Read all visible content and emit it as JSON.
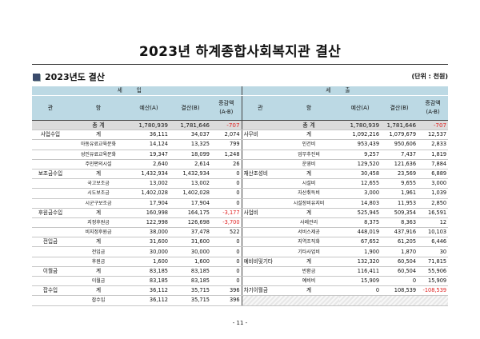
{
  "title": "2023년 하계종합사회복지관 결산",
  "subtitle": "2023년도 결산",
  "unit": "(단위 : 천원)",
  "header": {
    "income": "세입",
    "expense": "세출",
    "col_gwan": "관",
    "col_hang": "항",
    "col_budget": "예산(A)",
    "col_settle": "결산(B)",
    "col_diff": "증감액\n(A-B)"
  },
  "rows": [
    {
      "lg": "",
      "lh": "총 계",
      "la": "1,780,939",
      "lb": "1,781,646",
      "ld": "-707",
      "rg": "",
      "rh": "총 계",
      "ra": "1,780,939",
      "rb": "1,781,646",
      "rd": "-707"
    },
    {
      "lg": "사업수입",
      "lh": "계",
      "la": "36,111",
      "lb": "34,037",
      "ld": "2,074",
      "rg": "사무비",
      "rh": "계",
      "ra": "1,092,216",
      "rb": "1,079,679",
      "rd": "12,537"
    },
    {
      "lg": "",
      "lh": "아동유료교육문화",
      "la": "14,124",
      "lb": "13,325",
      "ld": "799",
      "rg": "",
      "rh": "인건비",
      "ra": "953,439",
      "rb": "950,606",
      "rd": "2,833"
    },
    {
      "lg": "",
      "lh": "성인유료교육문화",
      "la": "19,347",
      "lb": "18,099",
      "ld": "1,248",
      "rg": "",
      "rh": "업무추진비",
      "ra": "9,257",
      "rb": "7,437",
      "rd": "1,819"
    },
    {
      "lg": "",
      "lh": "주민편의시설",
      "la": "2,640",
      "lb": "2,614",
      "ld": "26",
      "rg": "",
      "rh": "운영비",
      "ra": "129,520",
      "rb": "121,636",
      "rd": "7,884"
    },
    {
      "lg": "보조금수입",
      "lh": "계",
      "la": "1,432,934",
      "lb": "1,432,934",
      "ld": "0",
      "rg": "재산조성비",
      "rh": "계",
      "ra": "30,458",
      "rb": "23,569",
      "rd": "6,889"
    },
    {
      "lg": "",
      "lh": "국고보조금",
      "la": "13,002",
      "lb": "13,002",
      "ld": "0",
      "rg": "",
      "rh": "시설비",
      "ra": "12,655",
      "rb": "9,655",
      "rd": "3,000"
    },
    {
      "lg": "",
      "lh": "시도보조금",
      "la": "1,402,028",
      "lb": "1,402,028",
      "ld": "0",
      "rg": "",
      "rh": "자산취득비",
      "ra": "3,000",
      "rb": "1,961",
      "rd": "1,039"
    },
    {
      "lg": "",
      "lh": "시군구보조금",
      "la": "17,904",
      "lb": "17,904",
      "ld": "0",
      "rg": "",
      "rh": "시설장비유지비",
      "ra": "14,803",
      "rb": "11,953",
      "rd": "2,850"
    },
    {
      "lg": "후원금수입",
      "lh": "계",
      "la": "160,998",
      "lb": "164,175",
      "ld": "-3,177",
      "rg": "사업비",
      "rh": "계",
      "ra": "525,945",
      "rb": "509,354",
      "rd": "16,591"
    },
    {
      "lg": "",
      "lh": "지정후원금",
      "la": "122,998",
      "lb": "126,698",
      "ld": "-3,700",
      "rg": "",
      "rh": "사례관리",
      "ra": "8,375",
      "rb": "8,363",
      "rd": "12"
    },
    {
      "lg": "",
      "lh": "비지정후원금",
      "la": "38,000",
      "lb": "37,478",
      "ld": "522",
      "rg": "",
      "rh": "서비스제공",
      "ra": "448,019",
      "rb": "437,916",
      "rd": "10,103"
    },
    {
      "lg": "전입금",
      "lh": "계",
      "la": "31,600",
      "lb": "31,600",
      "ld": "0",
      "rg": "",
      "rh": "지역조직화",
      "ra": "67,652",
      "rb": "61,205",
      "rd": "6,446"
    },
    {
      "lg": "",
      "lh": "전입금",
      "la": "30,000",
      "lb": "30,000",
      "ld": "0",
      "rg": "",
      "rh": "기타사업비",
      "ra": "1,900",
      "rb": "1,870",
      "rd": "30"
    },
    {
      "lg": "",
      "lh": "후원금",
      "la": "1,600",
      "lb": "1,600",
      "ld": "0",
      "rg": "예비비및기타",
      "rh": "계",
      "ra": "132,320",
      "rb": "60,504",
      "rd": "71,815"
    },
    {
      "lg": "이월금",
      "lh": "계",
      "la": "83,185",
      "lb": "83,185",
      "ld": "0",
      "rg": "",
      "rh": "반환금",
      "ra": "116,411",
      "rb": "60,504",
      "rd": "55,906"
    },
    {
      "lg": "",
      "lh": "이월금",
      "la": "83,185",
      "lb": "83,185",
      "ld": "0",
      "rg": "",
      "rh": "예비비",
      "ra": "15,909",
      "rb": "0",
      "rd": "15,909"
    },
    {
      "lg": "잡수입",
      "lh": "계",
      "la": "36,112",
      "lb": "35,715",
      "ld": "396",
      "rg": "차기이월금",
      "rh": "계",
      "ra": "0",
      "rb": "108,539",
      "rd": "-108,539"
    },
    {
      "lg": "",
      "lh": "잡수입",
      "la": "36,112",
      "lb": "35,715",
      "ld": "396",
      "rg": "",
      "rh": "",
      "ra": "",
      "rb": "",
      "rd": ""
    }
  ],
  "page_number": "- 11 -"
}
